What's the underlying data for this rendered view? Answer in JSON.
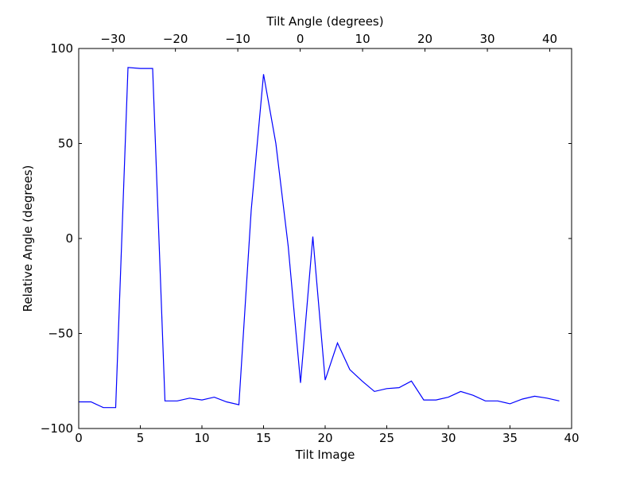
{
  "chart_data": {
    "type": "line",
    "xlabel": "Tilt Image",
    "ylabel": "Relative Angle (degrees)",
    "top_xlabel": "Tilt Angle (degrees)",
    "xlim": [
      0,
      40
    ],
    "ylim": [
      -100,
      100
    ],
    "top_xlim": [
      -35.5,
      43.5
    ],
    "x_ticks": [
      0,
      5,
      10,
      15,
      20,
      25,
      30,
      35,
      40
    ],
    "y_ticks": [
      -100,
      -50,
      0,
      50,
      100
    ],
    "top_x_ticks": [
      -30,
      -20,
      -10,
      0,
      10,
      20,
      30,
      40
    ],
    "x_tick_labels": [
      "0",
      "5",
      "10",
      "15",
      "20",
      "25",
      "30",
      "35",
      "40"
    ],
    "y_tick_labels": [
      "−100",
      "−50",
      "0",
      "50",
      "100"
    ],
    "top_x_tick_labels": [
      "−30",
      "−20",
      "−10",
      "0",
      "10",
      "20",
      "30",
      "40"
    ],
    "grid": false,
    "line_color": "#0000ff",
    "series": [
      {
        "x": [
          0,
          1,
          2,
          3,
          4,
          5,
          6,
          7,
          8,
          9,
          10,
          11,
          12,
          13,
          14,
          15,
          16,
          17,
          18,
          19,
          20,
          21,
          22,
          23,
          24,
          25,
          26,
          27,
          28,
          29,
          30,
          31,
          32,
          33,
          34,
          35,
          36,
          37,
          38,
          39
        ],
        "values": [
          -86,
          -86,
          -89,
          -89,
          90,
          89.5,
          89.5,
          -85.5,
          -85.5,
          -84,
          -85,
          -83.5,
          -86,
          -87.5,
          15,
          86.5,
          50,
          -4,
          -76,
          1,
          -74.5,
          -55,
          -69,
          -75,
          -80.5,
          -79,
          -78.5,
          -75,
          -85,
          -85,
          -83.5,
          -80.5,
          -82.5,
          -85.5,
          -85.5,
          -87,
          -84.5,
          -83,
          -84,
          -85.5
        ]
      }
    ]
  }
}
